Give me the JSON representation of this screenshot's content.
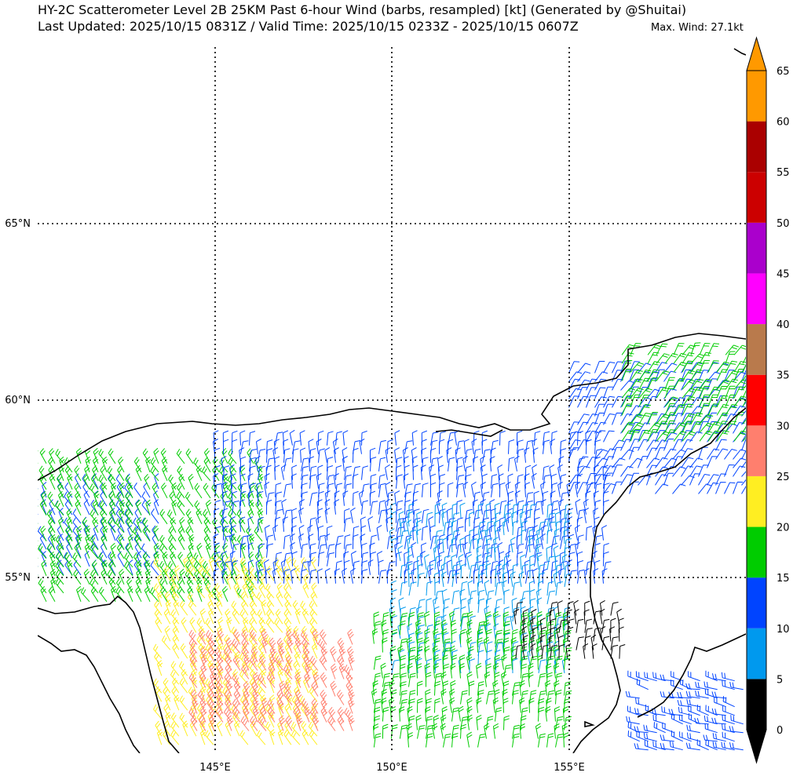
{
  "header": {
    "title_line1": "HY-2C Scatterometer Level 2B 25KM Past 6-hour Wind (barbs, resampled) [kt] (Generated by @Shuitai)",
    "title_line2": "Last Updated: 2025/10/15 0831Z / Valid Time: 2025/10/15 0233Z - 2025/10/15 0607Z",
    "max_wind": "Max. Wind: 27.1kt"
  },
  "map": {
    "lat_labels": [
      "65°N",
      "60°N",
      "55°N"
    ],
    "lon_labels": [
      "145°E",
      "150°E",
      "155°E"
    ],
    "extent": {
      "lon_min": 140,
      "lon_max": 160,
      "lat_min": 50.5,
      "lat_max": 70
    }
  },
  "colorbar": {
    "unit": "kt",
    "ticks": [
      "0",
      "5",
      "10",
      "15",
      "20",
      "25",
      "30",
      "35",
      "40",
      "45",
      "50",
      "55",
      "60",
      "65"
    ],
    "bins": [
      {
        "from": 0,
        "to": 5,
        "color": "#000000"
      },
      {
        "from": 5,
        "to": 10,
        "color": "#0099ee"
      },
      {
        "from": 10,
        "to": 15,
        "color": "#0044ff"
      },
      {
        "from": 15,
        "to": 20,
        "color": "#00cc00"
      },
      {
        "from": 20,
        "to": 25,
        "color": "#ffee22"
      },
      {
        "from": 25,
        "to": 30,
        "color": "#ff7f6e"
      },
      {
        "from": 30,
        "to": 35,
        "color": "#ff0000"
      },
      {
        "from": 35,
        "to": 40,
        "color": "#b97a4c"
      },
      {
        "from": 40,
        "to": 45,
        "color": "#ff00ff"
      },
      {
        "from": 45,
        "to": 50,
        "color": "#aa00cc"
      },
      {
        "from": 50,
        "to": 55,
        "color": "#cc0000"
      },
      {
        "from": 55,
        "to": 60,
        "color": "#aa0000"
      },
      {
        "from": 60,
        "to": 65,
        "color": "#ff9900"
      }
    ],
    "over_color": "#ff9900",
    "under_color": "#000000"
  },
  "wind_regions": [
    {
      "lon": [
        140.0,
        143.5
      ],
      "lat": [
        55.2,
        57.8
      ],
      "dir": "NW",
      "speed": "10-15",
      "color": "#0044ff"
    },
    {
      "lon": [
        140.0,
        146.5
      ],
      "lat": [
        54.5,
        58.5
      ],
      "dir": "NW",
      "speed": "15-20",
      "color": "#00cc00"
    },
    {
      "lon": [
        143.5,
        148.0
      ],
      "lat": [
        50.5,
        55.5
      ],
      "dir": "NW",
      "speed": "20-25",
      "color": "#ffee22"
    },
    {
      "lon": [
        144.5,
        149.0
      ],
      "lat": [
        51.0,
        53.5
      ],
      "dir": "NW",
      "speed": "25-30",
      "color": "#ff7f6e"
    },
    {
      "lon": [
        145.0,
        156.0
      ],
      "lat": [
        55.0,
        59.0
      ],
      "dir": "N",
      "speed": "10-15",
      "color": "#0044ff"
    },
    {
      "lon": [
        150.0,
        155.0
      ],
      "lat": [
        52.5,
        57.0
      ],
      "dir": "N",
      "speed": "5-10",
      "color": "#0099ee"
    },
    {
      "lon": [
        149.5,
        155.0
      ],
      "lat": [
        50.5,
        54.0
      ],
      "dir": "N",
      "speed": "15-20",
      "color": "#00cc00"
    },
    {
      "lon": [
        153.5,
        156.5
      ],
      "lat": [
        53.0,
        54.3
      ],
      "dir": "N",
      "speed": "0-5",
      "color": "#000000"
    },
    {
      "lon": [
        155.0,
        160.0
      ],
      "lat": [
        57.5,
        61.0
      ],
      "dir": "NE",
      "speed": "10-15",
      "color": "#0044ff"
    },
    {
      "lon": [
        156.5,
        160.0
      ],
      "lat": [
        59.0,
        61.5
      ],
      "dir": "NE",
      "speed": "15-25",
      "color": "#00cc00"
    },
    {
      "lon": [
        157.0,
        160.0
      ],
      "lat": [
        50.5,
        52.5
      ],
      "dir": "W",
      "speed": "10-20",
      "color": "#0044ff"
    }
  ]
}
